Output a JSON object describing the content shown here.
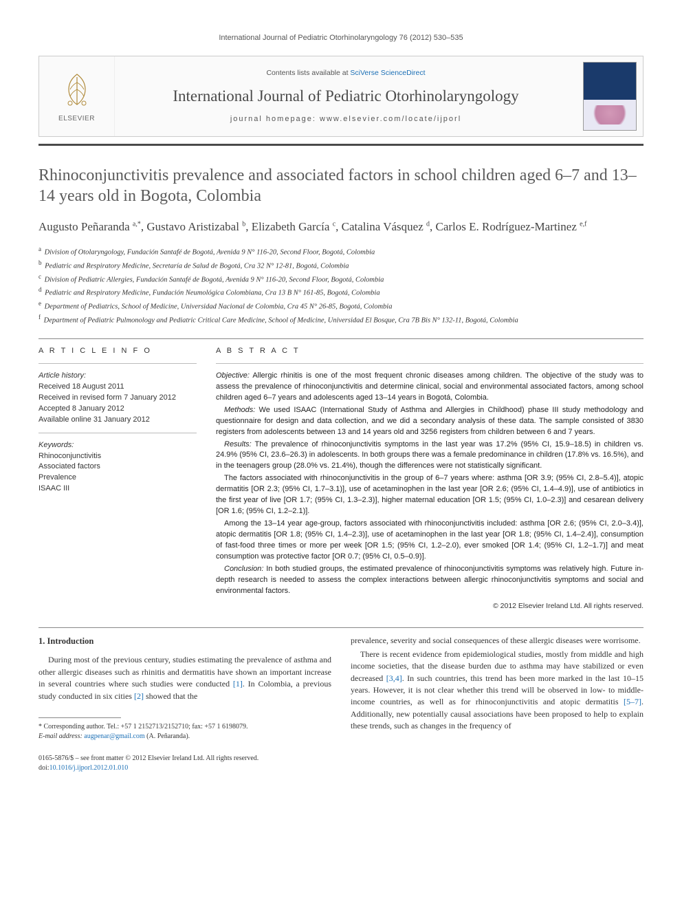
{
  "running_head": "International Journal of Pediatric Otorhinolaryngology 76 (2012) 530–535",
  "masthead": {
    "publisher_label": "ELSEVIER",
    "contents_prefix": "Contents lists available at ",
    "contents_link": "SciVerse ScienceDirect",
    "journal_name": "International Journal of Pediatric Otorhinolaryngology",
    "homepage_prefix": "journal homepage: ",
    "homepage_url": "www.elsevier.com/locate/ijporl"
  },
  "article": {
    "title": "Rhinoconjunctivitis prevalence and associated factors in school children aged 6–7 and 13–14 years old in Bogota, Colombia",
    "authors_html": "Augusto Peñaranda <sup>a,*</sup>, Gustavo Aristizabal <sup>b</sup>, Elizabeth García <sup>c</sup>, Catalina Vásquez <sup>d</sup>, Carlos E. Rodríguez-Martinez <sup>e,f</sup>",
    "affiliations": [
      {
        "key": "a",
        "text": "Division of Otolaryngology, Fundación Santafé de Bogotá, Avenida 9 N° 116-20, Second Floor, Bogotá, Colombia"
      },
      {
        "key": "b",
        "text": "Pediatric and Respiratory Medicine, Secretaría de Salud de Bogotá, Cra 32 N° 12-81, Bogotá, Colombia"
      },
      {
        "key": "c",
        "text": "Division of Pediatric Allergies, Fundación Santafé de Bogotá, Avenida 9 N° 116-20, Second Floor, Bogotá, Colombia"
      },
      {
        "key": "d",
        "text": "Pediatric and Respiratory Medicine, Fundación Neumológica Colombiana, Cra 13 B N° 161-85, Bogotá, Colombia"
      },
      {
        "key": "e",
        "text": "Department of Pediatrics, School of Medicine, Universidad Nacional de Colombia, Cra 45 N° 26-85, Bogotá, Colombia"
      },
      {
        "key": "f",
        "text": "Department of Pediatric Pulmonology and Pediatric Critical Care Medicine, School of Medicine, Universidad El Bosque, Cra 7B Bis N° 132-11, Bogotá, Colombia"
      }
    ]
  },
  "article_info": {
    "heading": "A R T I C L E   I N F O",
    "history_label": "Article history:",
    "history": [
      "Received 18 August 2011",
      "Received in revised form 7 January 2012",
      "Accepted 8 January 2012",
      "Available online 31 January 2012"
    ],
    "keywords_label": "Keywords:",
    "keywords": [
      "Rhinoconjunctivitis",
      "Associated factors",
      "Prevalence",
      "ISAAC III"
    ]
  },
  "abstract": {
    "heading": "A B S T R A C T",
    "paragraphs": [
      {
        "lead": "Objective:",
        "text": " Allergic rhinitis is one of the most frequent chronic diseases among children. The objective of the study was to assess the prevalence of rhinoconjunctivitis and determine clinical, social and environmental associated factors, among school children aged 6–7 years and adolescents aged 13–14 years in Bogotá, Colombia."
      },
      {
        "lead": "Methods:",
        "text": " We used ISAAC (International Study of Asthma and Allergies in Childhood) phase III study methodology and questionnaire for design and data collection, and we did a secondary analysis of these data. The sample consisted of 3830 registers from adolescents between 13 and 14 years old and 3256 registers from children between 6 and 7 years."
      },
      {
        "lead": "Results:",
        "text": " The prevalence of rhinoconjunctivitis symptoms in the last year was 17.2% (95% CI, 15.9–18.5) in children vs. 24.9% (95% CI, 23.6–26.3) in adolescents. In both groups there was a female predominance in children (17.8% vs. 16.5%), and in the teenagers group (28.0% vs. 21.4%), though the differences were not statistically significant."
      },
      {
        "lead": "",
        "text": "The factors associated with rhinoconjunctivitis in the group of 6–7 years where: asthma [OR 3.9; (95% CI, 2.8–5.4)], atopic dermatitis [OR 2.3; (95% CI, 1.7–3.1)], use of acetaminophen in the last year [OR 2.6; (95% CI, 1.4–4.9)], use of antibiotics in the first year of live [OR 1.7; (95% CI, 1.3–2.3)], higher maternal education [OR 1.5; (95% CI, 1.0–2.3)] and cesarean delivery [OR 1.6; (95% CI, 1.2–2.1)]."
      },
      {
        "lead": "",
        "text": "Among the 13–14 year age-group, factors associated with rhinoconjunctivitis included: asthma [OR 2.6; (95% CI, 2.0–3.4)], atopic dermatitis [OR 1.8; (95% CI, 1.4–2.3)], use of acetaminophen in the last year [OR 1.8; (95% CI, 1.4–2.4)], consumption of fast-food three times or more per week [OR 1.5; (95% CI, 1.2–2.0), ever smoked [OR 1.4; (95% CI, 1.2–1.7)] and meat consumption was protective factor [OR 0.7; (95% CI, 0.5–0.9)]."
      },
      {
        "lead": "Conclusion:",
        "text": " In both studied groups, the estimated prevalence of rhinoconjunctivitis symptoms was relatively high. Future in-depth research is needed to assess the complex interactions between allergic rhinoconjunctivitis symptoms and social and environmental factors."
      }
    ],
    "copyright": "© 2012 Elsevier Ireland Ltd. All rights reserved."
  },
  "intro": {
    "heading": "1. Introduction",
    "col1_p1": "During most of the previous century, studies estimating the prevalence of asthma and other allergic diseases such as rhinitis and dermatitis have shown an important increase in several countries where such studies were conducted [1]. In Colombia, a previous study conducted in six cities [2] showed that the",
    "col2_p1": "prevalence, severity and social consequences of these allergic diseases were worrisome.",
    "col2_p2": "There is recent evidence from epidemiological studies, mostly from middle and high income societies, that the disease burden due to asthma may have stabilized or even decreased [3,4]. In such countries, this trend has been more marked in the last 10–15 years. However, it is not clear whether this trend will be observed in low- to middle-income countries, as well as for rhinoconjunctivitis and atopic dermatitis [5–7]. Additionally, new potentially causal associations have been proposed to help to explain these trends, such as changes in the frequency of"
  },
  "footnote": {
    "corr_label": "* Corresponding author.",
    "corr_text": " Tel.: +57 1 2152713/2152710; fax: +57 1 6198079.",
    "email_label": "E-mail address:",
    "email": "augpenar@gmail.com",
    "email_tail": " (A. Peñaranda)."
  },
  "footer": {
    "issn": "0165-5876/$ – see front matter © 2012 Elsevier Ireland Ltd. All rights reserved.",
    "doi_label": "doi:",
    "doi": "10.1016/j.ijporl.2012.01.010"
  },
  "refs": {
    "r1": "[1]",
    "r2": "[2]",
    "r34": "[3,4]",
    "r57": "[5–7]"
  },
  "colors": {
    "link": "#1b6fb5",
    "rule": "#4a4a4a",
    "text": "#333333"
  }
}
